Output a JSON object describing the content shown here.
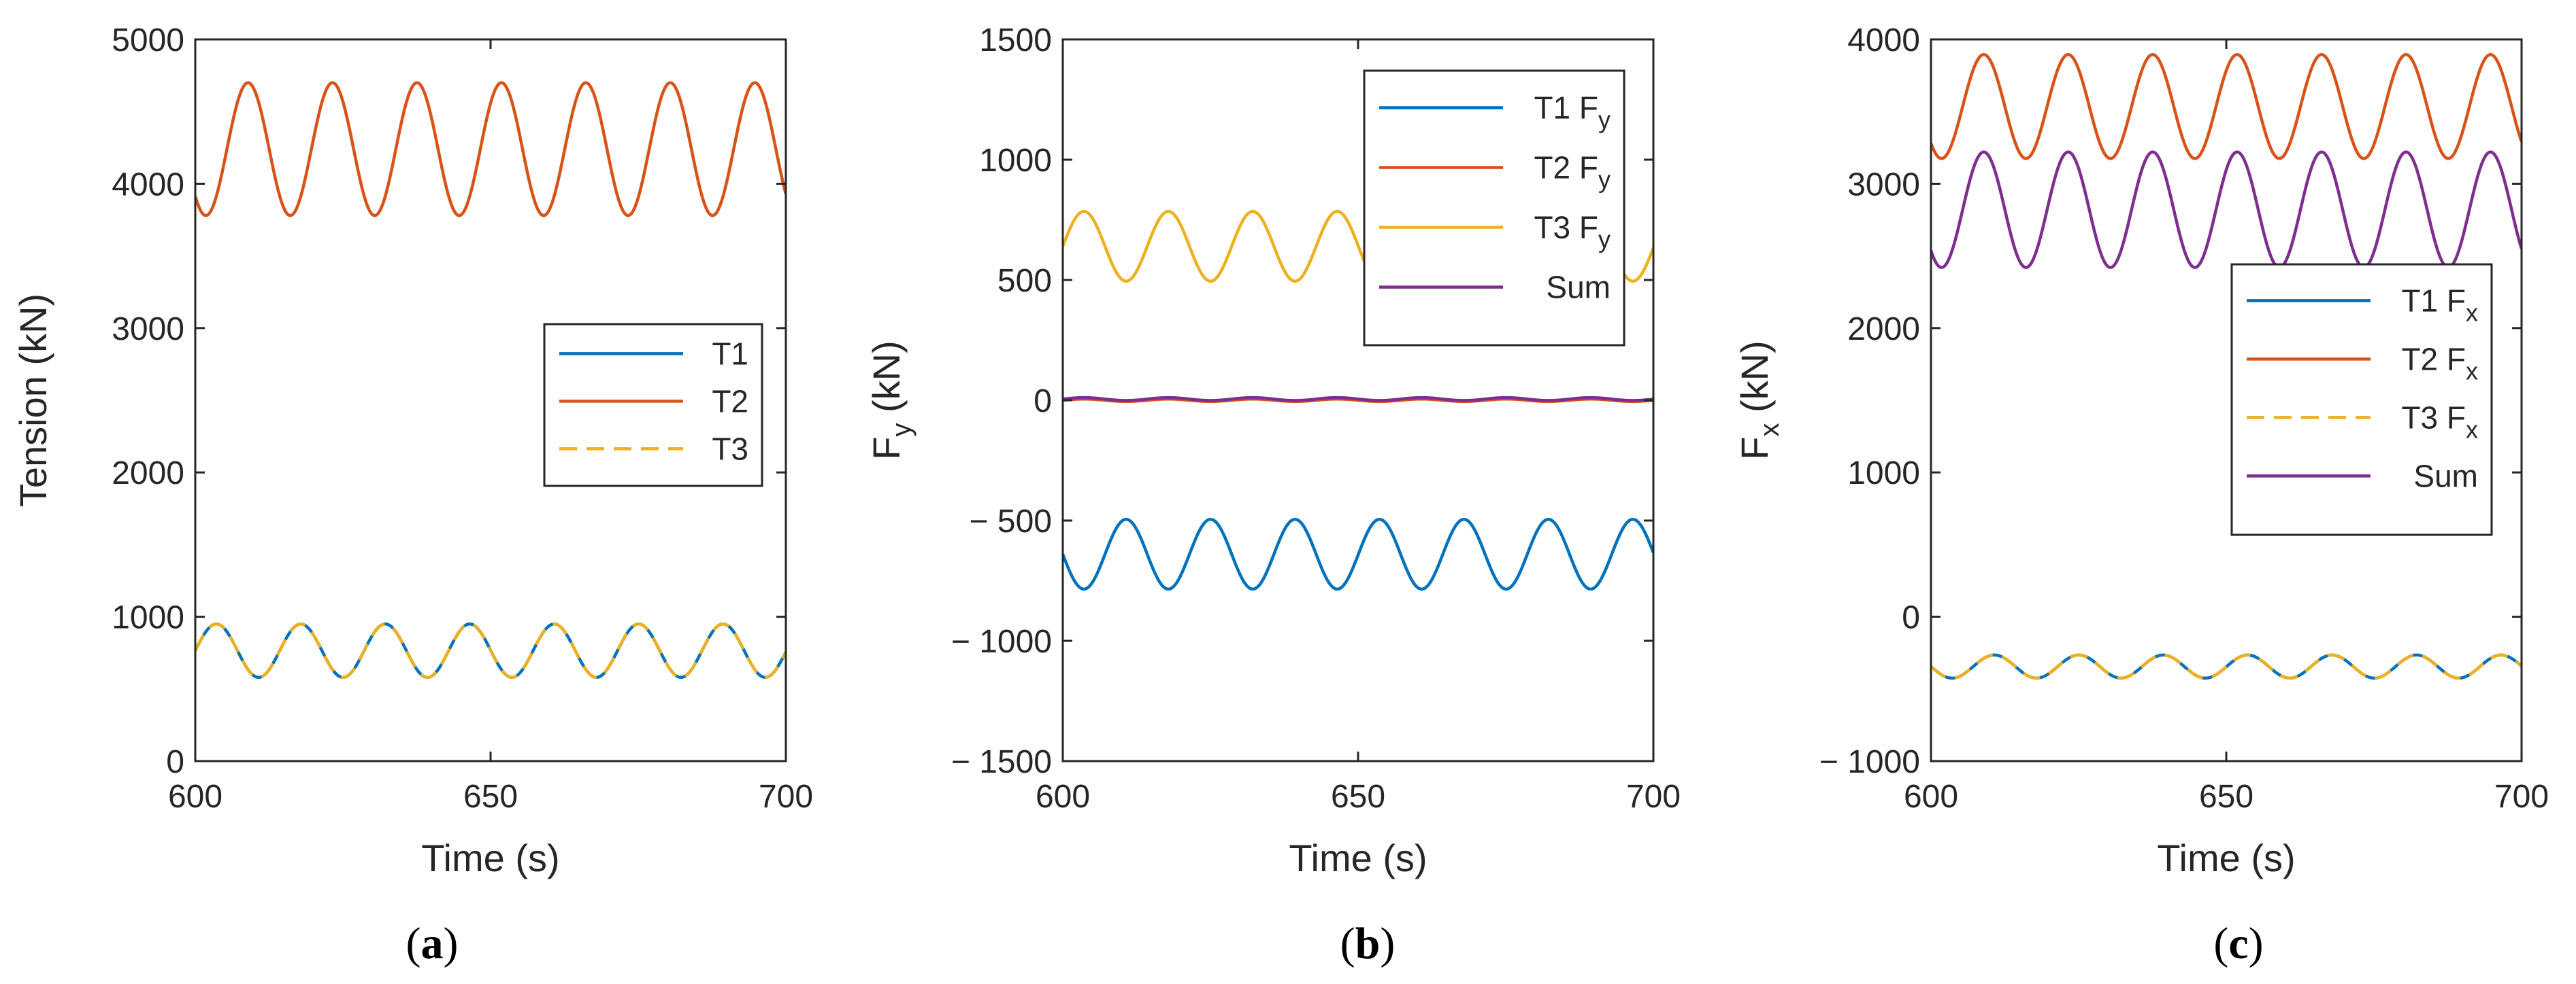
{
  "chart_data": [
    {
      "type": "line",
      "panel": "a",
      "xlabel": "Time (s)",
      "ylabel": "Tension (kN)",
      "xlim": [
        600,
        700
      ],
      "ylim": [
        0,
        5000
      ],
      "xticks": [
        600,
        650,
        700
      ],
      "yticks": [
        0,
        1000,
        2000,
        3000,
        4000,
        5000
      ],
      "legend_position": "right",
      "period_s": 14.3,
      "series": [
        {
          "name": "T1",
          "color": "#0072BD",
          "style": "solid",
          "mean": 765,
          "amplitude": 185,
          "phase_deg": 0
        },
        {
          "name": "T2",
          "color": "#D95319",
          "style": "solid",
          "mean": 4240,
          "amplitude": 460,
          "phase_deg": 225
        },
        {
          "name": "T3",
          "color": "#EDB120",
          "style": "dashed",
          "mean": 765,
          "amplitude": 185,
          "phase_deg": 0
        }
      ]
    },
    {
      "type": "line",
      "panel": "b",
      "xlabel": "Time (s)",
      "ylabel_main": "F",
      "ylabel_sub": "y",
      "ylabel_rest": " (kN)",
      "xlim": [
        600,
        700
      ],
      "ylim": [
        -1500,
        1500
      ],
      "xticks": [
        600,
        650,
        700
      ],
      "yticks": [
        -1500,
        -1000,
        -500,
        0,
        500,
        1000,
        1500
      ],
      "legend_position": "top-right",
      "period_s": 14.3,
      "series": [
        {
          "name": "T1 F",
          "sub": "y",
          "color": "#0072BD",
          "style": "solid",
          "mean": -640,
          "amplitude": 145,
          "phase_deg": 180
        },
        {
          "name": "T2 F",
          "sub": "y",
          "color": "#D95319",
          "style": "solid",
          "mean": 0,
          "amplitude": 5,
          "phase_deg": 0
        },
        {
          "name": "T3 F",
          "sub": "y",
          "color": "#EDB120",
          "style": "solid",
          "mean": 640,
          "amplitude": 145,
          "phase_deg": 0
        },
        {
          "name": "Sum",
          "sub": "",
          "color": "#7E2F8E",
          "style": "solid",
          "mean": 5,
          "amplitude": 6,
          "phase_deg": 0
        }
      ]
    },
    {
      "type": "line",
      "panel": "c",
      "xlabel": "Time (s)",
      "ylabel_main": "F",
      "ylabel_sub": "x",
      "ylabel_rest": " (kN)",
      "xlim": [
        600,
        700
      ],
      "ylim": [
        -1000,
        4000
      ],
      "xticks": [
        600,
        650,
        700
      ],
      "yticks": [
        -1000,
        0,
        1000,
        2000,
        3000,
        4000
      ],
      "legend_position": "right",
      "period_s": 14.3,
      "series": [
        {
          "name": "T1 F",
          "sub": "x",
          "color": "#0072BD",
          "style": "solid",
          "mean": -345,
          "amplitude": 80,
          "phase_deg": 180
        },
        {
          "name": "T2 F",
          "sub": "x",
          "color": "#D95319",
          "style": "solid",
          "mean": 3535,
          "amplitude": 360,
          "phase_deg": 225
        },
        {
          "name": "T3 F",
          "sub": "x",
          "color": "#EDB120",
          "style": "dashed",
          "mean": -345,
          "amplitude": 80,
          "phase_deg": 180
        },
        {
          "name": "Sum",
          "sub": "",
          "color": "#7E2F8E",
          "style": "solid",
          "mean": 2820,
          "amplitude": 400,
          "phase_deg": 225
        }
      ]
    }
  ],
  "panel_labels": [
    "(a)",
    "(b)",
    "(c)"
  ]
}
